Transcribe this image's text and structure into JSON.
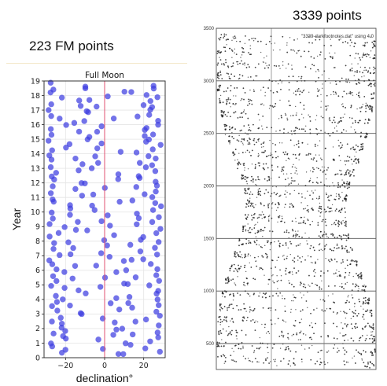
{
  "left_label": "223 FM points",
  "right_label": "3339 points",
  "chart_data": [
    {
      "type": "scatter",
      "title": "Full Moon",
      "xlabel": "declination°",
      "ylabel": "Year",
      "xlim": [
        -31,
        31
      ],
      "ylim": [
        0,
        19
      ],
      "xticks": [
        -20,
        0,
        20
      ],
      "yticks": [
        0,
        1,
        2,
        3,
        4,
        5,
        6,
        7,
        8,
        9,
        10,
        11,
        12,
        13,
        14,
        15,
        16,
        17,
        18,
        19
      ],
      "grid": true,
      "marker_color": "#3d3de0",
      "reference_line": {
        "x": 0,
        "color": "#e05070"
      },
      "n_points": 223
    },
    {
      "type": "scatter",
      "legend": "\"3339-darkfootnotes.dat\" using 4:0",
      "yticks": [
        500,
        1000,
        1500,
        2000,
        2500,
        3000,
        3500
      ],
      "ylim": [
        300,
        3500
      ],
      "grid": true,
      "marker_color": "#222222",
      "n_points": 3339
    }
  ]
}
